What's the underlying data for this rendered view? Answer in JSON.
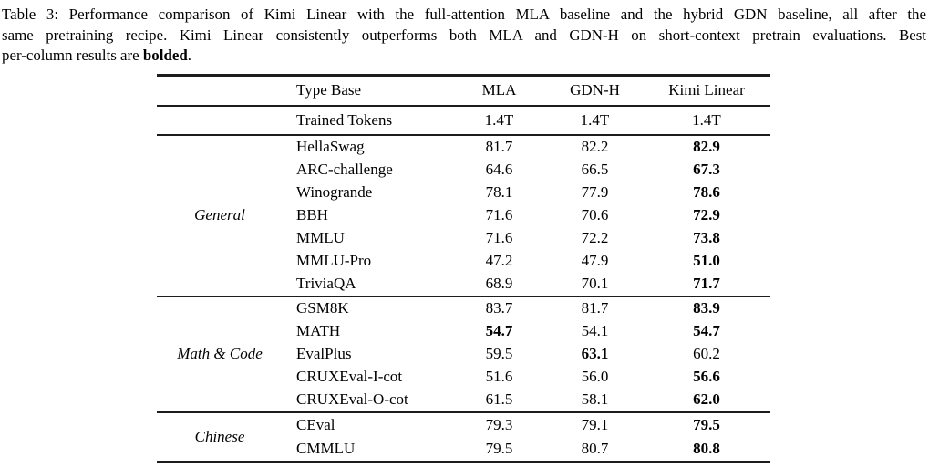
{
  "caption": {
    "line1": "Table 3: Performance comparison of Kimi Linear with the full-attention MLA baseline and the hybrid GDN baseline, all after the",
    "line2": "same pretraining recipe. Kimi Linear consistently outperforms both MLA and GDN-H on short-context pretrain evaluations. Best",
    "line3_prefix": "per-column results are ",
    "line3_bold": "bolded",
    "line3_suffix": "."
  },
  "table": {
    "header": {
      "type_base_label": "Type Base",
      "columns": [
        "MLA",
        "GDN-H",
        "Kimi Linear"
      ]
    },
    "tokens_row": {
      "label": "Trained Tokens",
      "values": [
        "1.4T",
        "1.4T",
        "1.4T"
      ]
    },
    "sections": [
      {
        "category": "General",
        "rows": [
          {
            "benchmark": "HellaSwag",
            "values": [
              "81.7",
              "82.2",
              "82.9"
            ],
            "bold": [
              false,
              false,
              true
            ]
          },
          {
            "benchmark": "ARC-challenge",
            "values": [
              "64.6",
              "66.5",
              "67.3"
            ],
            "bold": [
              false,
              false,
              true
            ]
          },
          {
            "benchmark": "Winogrande",
            "values": [
              "78.1",
              "77.9",
              "78.6"
            ],
            "bold": [
              false,
              false,
              true
            ]
          },
          {
            "benchmark": "BBH",
            "values": [
              "71.6",
              "70.6",
              "72.9"
            ],
            "bold": [
              false,
              false,
              true
            ]
          },
          {
            "benchmark": "MMLU",
            "values": [
              "71.6",
              "72.2",
              "73.8"
            ],
            "bold": [
              false,
              false,
              true
            ]
          },
          {
            "benchmark": "MMLU-Pro",
            "values": [
              "47.2",
              "47.9",
              "51.0"
            ],
            "bold": [
              false,
              false,
              true
            ]
          },
          {
            "benchmark": "TriviaQA",
            "values": [
              "68.9",
              "70.1",
              "71.7"
            ],
            "bold": [
              false,
              false,
              true
            ]
          }
        ]
      },
      {
        "category": "Math & Code",
        "rows": [
          {
            "benchmark": "GSM8K",
            "values": [
              "83.7",
              "81.7",
              "83.9"
            ],
            "bold": [
              false,
              false,
              true
            ]
          },
          {
            "benchmark": "MATH",
            "values": [
              "54.7",
              "54.1",
              "54.7"
            ],
            "bold": [
              true,
              false,
              true
            ]
          },
          {
            "benchmark": "EvalPlus",
            "values": [
              "59.5",
              "63.1",
              "60.2"
            ],
            "bold": [
              false,
              true,
              false
            ]
          },
          {
            "benchmark": "CRUXEval-I-cot",
            "values": [
              "51.6",
              "56.0",
              "56.6"
            ],
            "bold": [
              false,
              false,
              true
            ]
          },
          {
            "benchmark": "CRUXEval-O-cot",
            "values": [
              "61.5",
              "58.1",
              "62.0"
            ],
            "bold": [
              false,
              false,
              true
            ]
          }
        ]
      },
      {
        "category": "Chinese",
        "rows": [
          {
            "benchmark": "CEval",
            "values": [
              "79.3",
              "79.1",
              "79.5"
            ],
            "bold": [
              false,
              false,
              true
            ]
          },
          {
            "benchmark": "CMMLU",
            "values": [
              "79.5",
              "80.7",
              "80.8"
            ],
            "bold": [
              false,
              false,
              true
            ]
          }
        ]
      }
    ]
  }
}
